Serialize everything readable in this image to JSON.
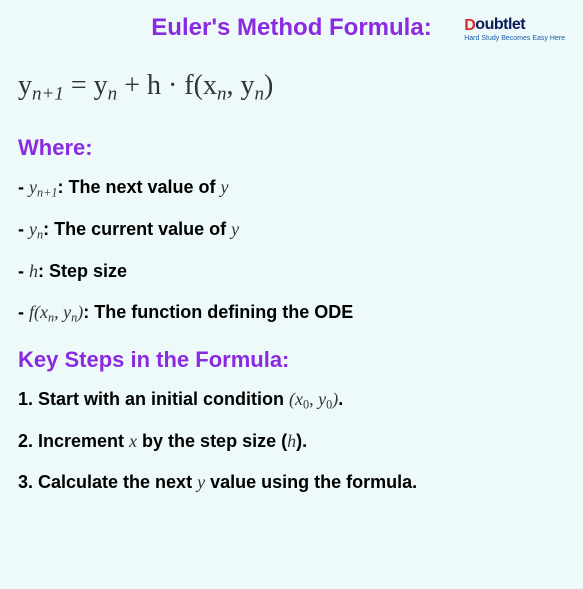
{
  "title": "Euler's Method Formula:",
  "title_fontsize": 24,
  "title_color": "#8a2be2",
  "background_color": "#eefafa",
  "logo": {
    "text_pre": "D",
    "accent": "D",
    "text_post": "oubtlet",
    "tagline": "Hard Study Becomes Easy Here",
    "main_color": "#0a1a5a",
    "accent_color": "#d62d2d",
    "fontsize": 16
  },
  "formula": {
    "html": "y<sub>n+1</sub> = y<sub>n</sub> + h · f(x<sub>n</sub>, y<sub>n</sub>)",
    "plain": "y_{n+1} = y_n + h · f(x_n, y_n)",
    "fontsize": 28,
    "color": "#333333"
  },
  "where": {
    "heading": "Where:",
    "heading_fontsize": 22,
    "item_fontsize": 18,
    "items": [
      {
        "term_html": "y<sub>n+1</sub>",
        "desc": ": The next value of ",
        "trail_var": "y"
      },
      {
        "term_html": "y<sub>n</sub>",
        "desc": ": The current value of ",
        "trail_var": "y"
      },
      {
        "term_html": "h",
        "desc": ": Step size",
        "trail_var": ""
      },
      {
        "term_html": "f(x<sub>n</sub>, y<sub>n</sub>)",
        "desc": ": The function defining the ODE",
        "trail_var": ""
      }
    ]
  },
  "steps": {
    "heading": "Key Steps in the Formula:",
    "heading_fontsize": 22,
    "item_fontsize": 18,
    "items": [
      {
        "n": "1.",
        "pre": " Start with an initial condition ",
        "math_html": "(x<sub>0</sub>, y<sub>0</sub>)",
        "post": "."
      },
      {
        "n": "2.",
        "pre": " Increment ",
        "mid_var": "x",
        "mid": " by the step size (",
        "math_html": "h",
        "post": ")."
      },
      {
        "n": "3.",
        "pre": " Calculate the next ",
        "mid_var": "y",
        "mid": " value using the formula.",
        "math_html": "",
        "post": ""
      }
    ]
  }
}
